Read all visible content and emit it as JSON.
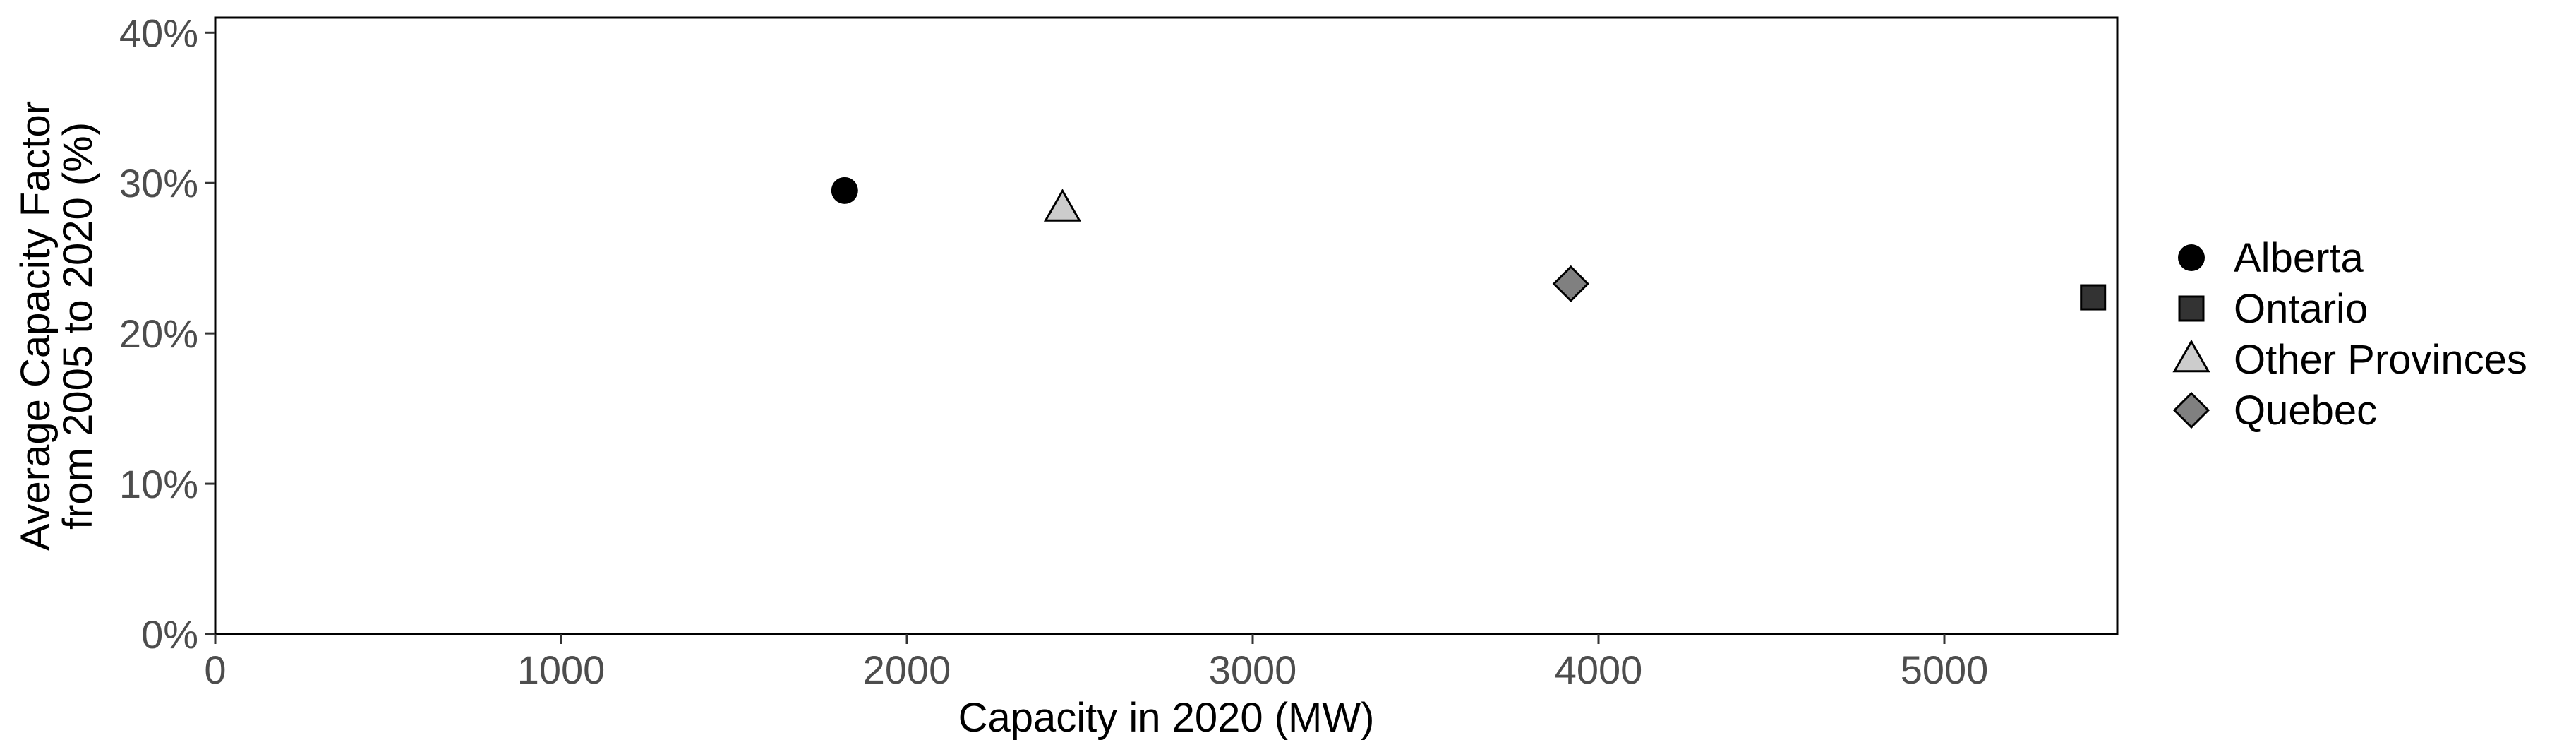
{
  "chart_data": {
    "type": "scatter",
    "title": "",
    "xlabel": "Capacity in 2020 (MW)",
    "ylabel_lines": [
      "Average Capacity Factor",
      "from 2005 to 2020 (%)"
    ],
    "xlim": [
      0,
      5500
    ],
    "ylim": [
      0,
      0.41
    ],
    "x_ticks": [
      0,
      1000,
      2000,
      3000,
      4000,
      5000
    ],
    "x_tick_labels": [
      "0",
      "1000",
      "2000",
      "3000",
      "4000",
      "5000"
    ],
    "y_ticks": [
      0,
      0.1,
      0.2,
      0.3,
      0.4
    ],
    "y_tick_labels": [
      "0%",
      "10%",
      "20%",
      "30%",
      "40%"
    ],
    "grid": false,
    "legend_position": "right",
    "series": [
      {
        "name": "Alberta",
        "shape": "circle",
        "color": "#000000",
        "x": 1820,
        "y": 0.295
      },
      {
        "name": "Ontario",
        "shape": "square",
        "color": "#333333",
        "x": 5430,
        "y": 0.224
      },
      {
        "name": "Other Provinces",
        "shape": "triangle",
        "color": "#cccccc",
        "x": 2450,
        "y": 0.283
      },
      {
        "name": "Quebec",
        "shape": "diamond",
        "color": "#808080",
        "x": 3920,
        "y": 0.233
      }
    ]
  }
}
